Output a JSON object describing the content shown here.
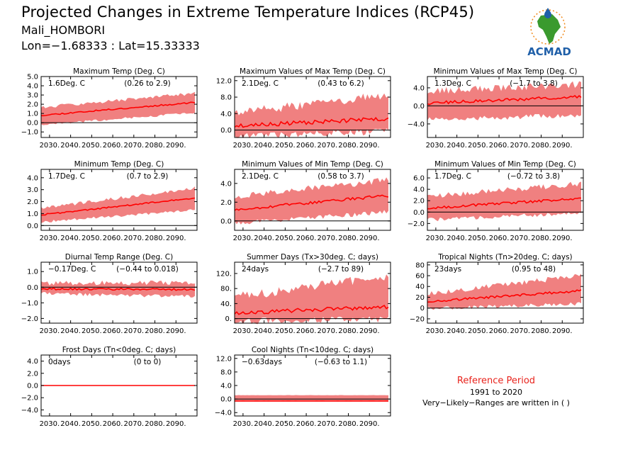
{
  "header": {
    "title": "Projected Changes in Extreme Temperature Indices (RCP45)",
    "location": "Mali_HOMBORI",
    "coords": "Lon=−1.68333 : Lat=15.33333",
    "logo_text": "ACMAD"
  },
  "reference": {
    "title": "Reference Period",
    "years": "1991 to 2020",
    "note": "Very−Likely−Ranges are written in ( )"
  },
  "colors": {
    "band": "#f08080",
    "line": "#ff0000",
    "zero": "#000000",
    "logo_green": "#3a9a2e",
    "logo_blue": "#1f5fa8",
    "logo_orange": "#f08a1c"
  },
  "chart_data": [
    {
      "id": "tmax",
      "type": "area",
      "title": "Maximum Temp (Deg. C)",
      "change": "1.6Deg. C",
      "range": "(0.26 to 2.9)",
      "ylim": [
        -1.6,
        5.0
      ],
      "yticks": [
        -1.0,
        0.0,
        1.0,
        2.0,
        3.0,
        4.0,
        5.0
      ],
      "ytick_labels": [
        "−1.0",
        "0.0",
        "1.0",
        "2.0",
        "3.0",
        "4.0",
        "5.0"
      ],
      "mean_start": 0.8,
      "mean_end": 2.2,
      "lower_start": -0.1,
      "lower_end": 1.2,
      "upper_start": 1.5,
      "upper_end": 3.0,
      "noise": 0.25,
      "seed": 11
    },
    {
      "id": "txx",
      "type": "area",
      "title": "Maximum Values of Max Temp (Deg. C)",
      "change": "2.1Deg. C",
      "range": "(0.43 to 6.2)",
      "ylim": [
        -1.8,
        13.0
      ],
      "yticks": [
        0.0,
        4.0,
        8.0,
        12.0
      ],
      "ytick_labels": [
        "0.0",
        "4.0",
        "8.0",
        "12.0"
      ],
      "mean_start": 1.0,
      "mean_end": 2.8,
      "lower_start": -0.8,
      "lower_end": 0.5,
      "upper_start": 3.0,
      "upper_end": 7.5,
      "noise": 1.6,
      "seed": 23
    },
    {
      "id": "txn",
      "type": "area",
      "title": "Minimum Values of Max Temp (Deg. C)",
      "change": "1.3Deg. C",
      "range": "(−1.7 to 3.8)",
      "ylim": [
        -7.0,
        6.5
      ],
      "yticks": [
        -4.0,
        0.0,
        4.0
      ],
      "ytick_labels": [
        "−4.0",
        "0.0",
        "4.0"
      ],
      "mean_start": 0.6,
      "mean_end": 2.0,
      "lower_start": -2.5,
      "lower_end": -1.5,
      "upper_start": 2.5,
      "upper_end": 4.0,
      "noise": 1.1,
      "seed": 37
    },
    {
      "id": "tmin",
      "type": "area",
      "title": "Minimum Temp (Deg. C)",
      "change": "1.7Deg. C",
      "range": "(0.7 to 2.9)",
      "ylim": [
        -0.4,
        4.7
      ],
      "yticks": [
        0.0,
        1.0,
        2.0,
        3.0,
        4.0
      ],
      "ytick_labels": [
        "0.0",
        "1.0",
        "2.0",
        "3.0",
        "4.0"
      ],
      "mean_start": 0.9,
      "mean_end": 2.3,
      "lower_start": 0.4,
      "lower_end": 1.4,
      "upper_start": 1.3,
      "upper_end": 3.0,
      "noise": 0.2,
      "seed": 41
    },
    {
      "id": "tnn",
      "type": "area",
      "title": "Minimum Values of Min Temp (Deg. C)",
      "change": "2.1Deg. C",
      "range": "(0.58 to 3.7)",
      "ylim": [
        -1.0,
        5.5
      ],
      "yticks": [
        0.0,
        2.0,
        4.0
      ],
      "ytick_labels": [
        "0.0",
        "2.0",
        "4.0"
      ],
      "mean_start": 1.2,
      "mean_end": 2.7,
      "lower_start": 0.0,
      "lower_end": 1.2,
      "upper_start": 2.3,
      "upper_end": 4.0,
      "noise": 0.5,
      "seed": 53
    },
    {
      "id": "tnx",
      "type": "area",
      "title": "Minimum Values of Min Temp (Deg. C)",
      "change": "1.7Deg. C",
      "range": "(−0.72 to 3.8)",
      "ylim": [
        -3.2,
        7.5
      ],
      "yticks": [
        -2.0,
        0.0,
        2.0,
        4.0,
        6.0
      ],
      "ytick_labels": [
        "−2.0",
        "0.0",
        "2.0",
        "4.0",
        "6.0"
      ],
      "mean_start": 0.7,
      "mean_end": 2.4,
      "lower_start": -1.0,
      "lower_end": 0.2,
      "upper_start": 2.3,
      "upper_end": 4.5,
      "noise": 0.7,
      "seed": 67
    },
    {
      "id": "dtr",
      "type": "area",
      "title": "Diurnal Temp Range (Deg. C)",
      "change": "−0.17Deg. C",
      "range": "(−0.44 to 0.018)",
      "ylim": [
        -2.3,
        1.6
      ],
      "yticks": [
        -2.0,
        -1.0,
        0.0,
        1.0
      ],
      "ytick_labels": [
        "−2.0",
        "−1.0",
        "0.0",
        "1.0"
      ],
      "mean_start": -0.1,
      "mean_end": -0.15,
      "lower_start": -0.3,
      "lower_end": -0.5,
      "upper_start": 0.1,
      "upper_end": 0.15,
      "noise": 0.22,
      "seed": 79
    },
    {
      "id": "su",
      "type": "area",
      "title": "Summer Days (Tx>30deg. C; days)",
      "change": "24days",
      "range": "(−2.7 to 89)",
      "ylim": [
        -12,
        150
      ],
      "yticks": [
        0,
        40,
        80,
        120
      ],
      "ytick_labels": [
        "0.",
        "40.",
        "80.",
        "120."
      ],
      "mean_start": 15,
      "mean_end": 32,
      "lower_start": 2,
      "lower_end": 8,
      "upper_start": 45,
      "upper_end": 100,
      "noise": 18,
      "seed": 83
    },
    {
      "id": "tr",
      "type": "area",
      "title": "Tropical Nights (Tn>20deg. C; days)",
      "change": "23days",
      "range": "(0.95 to 48)",
      "ylim": [
        -28,
        85
      ],
      "yticks": [
        -20,
        0,
        20,
        40,
        60,
        80
      ],
      "ytick_labels": [
        "−20",
        "0",
        "20",
        "40",
        "60",
        "80"
      ],
      "mean_start": 12,
      "mean_end": 32,
      "lower_start": 2,
      "lower_end": 12,
      "upper_start": 22,
      "upper_end": 55,
      "noise": 7,
      "seed": 97
    },
    {
      "id": "fd",
      "type": "area",
      "title": "Frost Days (Tn<0deg. C; days)",
      "change": "0days",
      "range": "(0 to 0)",
      "ylim": [
        -5.0,
        5.0
      ],
      "yticks": [
        -4.0,
        -2.0,
        0.0,
        2.0,
        4.0
      ],
      "ytick_labels": [
        "−4.0",
        "−2.0",
        "0.0",
        "2.0",
        "4.0"
      ],
      "mean_start": 0.0,
      "mean_end": 0.0,
      "lower_start": 0.0,
      "lower_end": 0.0,
      "upper_start": 0.0,
      "upper_end": 0.0,
      "noise": 0,
      "seed": 101
    },
    {
      "id": "tn10p",
      "type": "area",
      "title": "Cool Nights (Tn<10deg. C; days)",
      "change": "−0.63days",
      "range": "(−0.63 to 1.1)",
      "ylim": [
        -5.0,
        13.0
      ],
      "yticks": [
        -4.0,
        0.0,
        4.0,
        8.0,
        12.0
      ],
      "ytick_labels": [
        "−4.0",
        "0.0",
        "4.0",
        "8.0",
        "12.0"
      ],
      "mean_start": -0.6,
      "mean_end": -0.6,
      "lower_start": -0.63,
      "lower_end": -0.63,
      "upper_start": 1.1,
      "upper_end": 1.1,
      "noise": 0.05,
      "seed": 113
    }
  ],
  "x_axis": {
    "xlim": [
      2026,
      2100
    ],
    "ticks": [
      2030,
      2040,
      2050,
      2060,
      2070,
      2080,
      2090
    ],
    "tick_labels": [
      "2030.",
      "2040.",
      "2050.",
      "2060.",
      "2070.",
      "2080.",
      "2090."
    ]
  }
}
